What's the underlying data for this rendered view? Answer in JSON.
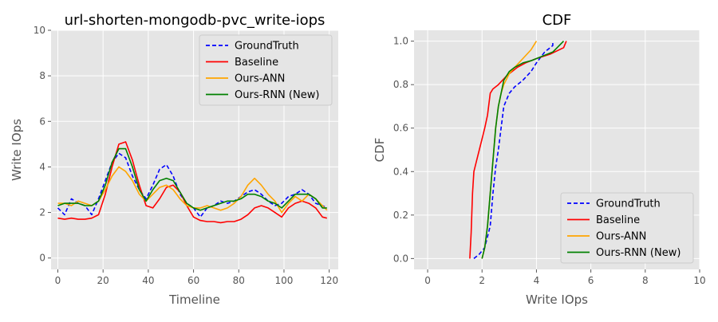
{
  "chart_data": [
    {
      "type": "line",
      "title": "url-shorten-mongodb-pvc_write-iops",
      "xlabel": "Timeline",
      "ylabel": "Write IOps",
      "xlim": [
        -3,
        124
      ],
      "ylim": [
        -0.5,
        10
      ],
      "xticks": [
        0,
        20,
        40,
        60,
        80,
        100,
        120
      ],
      "xtick_labels": [
        "0",
        "20",
        "40",
        "60",
        "80",
        "100",
        "120"
      ],
      "yticks": [
        0,
        2,
        4,
        6,
        8,
        10
      ],
      "ytick_labels": [
        "0",
        "2",
        "4",
        "6",
        "8",
        "10"
      ],
      "grid": true,
      "legend": "top-right",
      "x": [
        0,
        3,
        6,
        9,
        12,
        15,
        18,
        21,
        24,
        27,
        30,
        33,
        36,
        39,
        42,
        45,
        48,
        51,
        54,
        57,
        60,
        63,
        66,
        69,
        72,
        75,
        78,
        81,
        84,
        87,
        90,
        93,
        96,
        99,
        102,
        105,
        108,
        111,
        114,
        117,
        119
      ],
      "series": [
        {
          "name": "GroundTruth",
          "color": "#0000ff",
          "dash": "dashed",
          "values": [
            2.2,
            1.9,
            2.6,
            2.4,
            2.3,
            1.9,
            2.6,
            3.4,
            4.2,
            4.6,
            4.4,
            3.6,
            3.0,
            2.6,
            3.2,
            3.9,
            4.1,
            3.6,
            2.8,
            2.4,
            2.2,
            1.8,
            2.2,
            2.3,
            2.5,
            2.4,
            2.5,
            2.7,
            2.9,
            3.0,
            2.8,
            2.5,
            2.3,
            2.4,
            2.7,
            2.8,
            3.0,
            2.8,
            2.4,
            2.3,
            2.2
          ]
        },
        {
          "name": "Baseline",
          "color": "#ff0000",
          "dash": "solid",
          "values": [
            1.75,
            1.7,
            1.75,
            1.7,
            1.7,
            1.75,
            1.9,
            2.8,
            4.0,
            5.0,
            5.1,
            4.3,
            3.2,
            2.3,
            2.2,
            2.6,
            3.1,
            3.2,
            2.9,
            2.3,
            1.8,
            1.65,
            1.6,
            1.6,
            1.55,
            1.6,
            1.6,
            1.7,
            1.9,
            2.2,
            2.3,
            2.2,
            2.0,
            1.8,
            2.2,
            2.4,
            2.5,
            2.4,
            2.2,
            1.8,
            1.75
          ]
        },
        {
          "name": "Ours-ANN",
          "color": "#ffa500",
          "dash": "solid",
          "values": [
            2.4,
            2.4,
            2.3,
            2.5,
            2.4,
            2.3,
            2.5,
            3.0,
            3.6,
            4.0,
            3.8,
            3.4,
            2.8,
            2.5,
            2.8,
            3.1,
            3.2,
            3.0,
            2.6,
            2.3,
            2.2,
            2.2,
            2.3,
            2.2,
            2.1,
            2.2,
            2.4,
            2.7,
            3.2,
            3.5,
            3.2,
            2.8,
            2.5,
            2.0,
            2.4,
            2.7,
            2.5,
            2.8,
            2.6,
            2.3,
            2.1
          ]
        },
        {
          "name": "Ours-RNN (New)",
          "color": "#008000",
          "dash": "solid",
          "values": [
            2.3,
            2.4,
            2.4,
            2.4,
            2.3,
            2.3,
            2.5,
            3.2,
            4.2,
            4.8,
            4.8,
            4.0,
            3.0,
            2.5,
            3.0,
            3.4,
            3.5,
            3.4,
            2.9,
            2.4,
            2.2,
            2.1,
            2.2,
            2.3,
            2.4,
            2.5,
            2.5,
            2.6,
            2.8,
            2.8,
            2.7,
            2.5,
            2.4,
            2.2,
            2.5,
            2.8,
            2.8,
            2.8,
            2.6,
            2.2,
            2.2
          ]
        }
      ]
    },
    {
      "type": "line",
      "title": "CDF",
      "xlabel": "Write IOps",
      "ylabel": "CDF",
      "xlim": [
        -0.5,
        10
      ],
      "ylim": [
        -0.05,
        1.05
      ],
      "xticks": [
        0,
        2,
        4,
        6,
        8,
        10
      ],
      "xtick_labels": [
        "0",
        "2",
        "4",
        "6",
        "8",
        "10"
      ],
      "yticks": [
        0.0,
        0.2,
        0.4,
        0.6,
        0.8,
        1.0
      ],
      "ytick_labels": [
        "0.0",
        "0.2",
        "0.4",
        "0.6",
        "0.8",
        "1.0"
      ],
      "grid": true,
      "legend": "bottom-right",
      "series": [
        {
          "name": "GroundTruth",
          "color": "#0000ff",
          "dash": "dashed",
          "x": [
            1.7,
            1.9,
            2.1,
            2.3,
            2.4,
            2.5,
            2.6,
            2.7,
            2.8,
            3.0,
            3.2,
            3.5,
            3.8,
            4.0,
            4.3,
            4.6,
            4.6
          ],
          "y": [
            0.0,
            0.02,
            0.05,
            0.15,
            0.3,
            0.42,
            0.5,
            0.6,
            0.7,
            0.76,
            0.79,
            0.82,
            0.86,
            0.9,
            0.95,
            0.98,
            1.0
          ]
        },
        {
          "name": "Baseline",
          "color": "#ff0000",
          "dash": "solid",
          "x": [
            1.55,
            1.6,
            1.65,
            1.7,
            1.8,
            1.9,
            2.0,
            2.1,
            2.2,
            2.3,
            2.4,
            2.6,
            2.9,
            3.3,
            3.6,
            4.0,
            4.5,
            5.0,
            5.1
          ],
          "y": [
            0.0,
            0.12,
            0.3,
            0.4,
            0.45,
            0.5,
            0.55,
            0.6,
            0.66,
            0.76,
            0.78,
            0.8,
            0.84,
            0.88,
            0.9,
            0.92,
            0.94,
            0.97,
            1.0
          ]
        },
        {
          "name": "Ours-ANN",
          "color": "#ffa500",
          "dash": "solid",
          "x": [
            2.0,
            2.1,
            2.2,
            2.3,
            2.4,
            2.5,
            2.6,
            2.7,
            2.8,
            3.0,
            3.2,
            3.5,
            3.8,
            4.0
          ],
          "y": [
            0.0,
            0.05,
            0.15,
            0.3,
            0.45,
            0.6,
            0.7,
            0.76,
            0.8,
            0.85,
            0.88,
            0.92,
            0.96,
            1.0
          ]
        },
        {
          "name": "Ours-RNN (New)",
          "color": "#008000",
          "dash": "solid",
          "x": [
            2.0,
            2.1,
            2.2,
            2.3,
            2.4,
            2.5,
            2.6,
            2.7,
            2.8,
            3.0,
            3.2,
            3.5,
            3.8,
            4.2,
            4.6,
            5.0
          ],
          "y": [
            0.0,
            0.05,
            0.15,
            0.3,
            0.45,
            0.6,
            0.7,
            0.76,
            0.82,
            0.86,
            0.88,
            0.9,
            0.91,
            0.93,
            0.95,
            1.0
          ]
        }
      ]
    }
  ]
}
